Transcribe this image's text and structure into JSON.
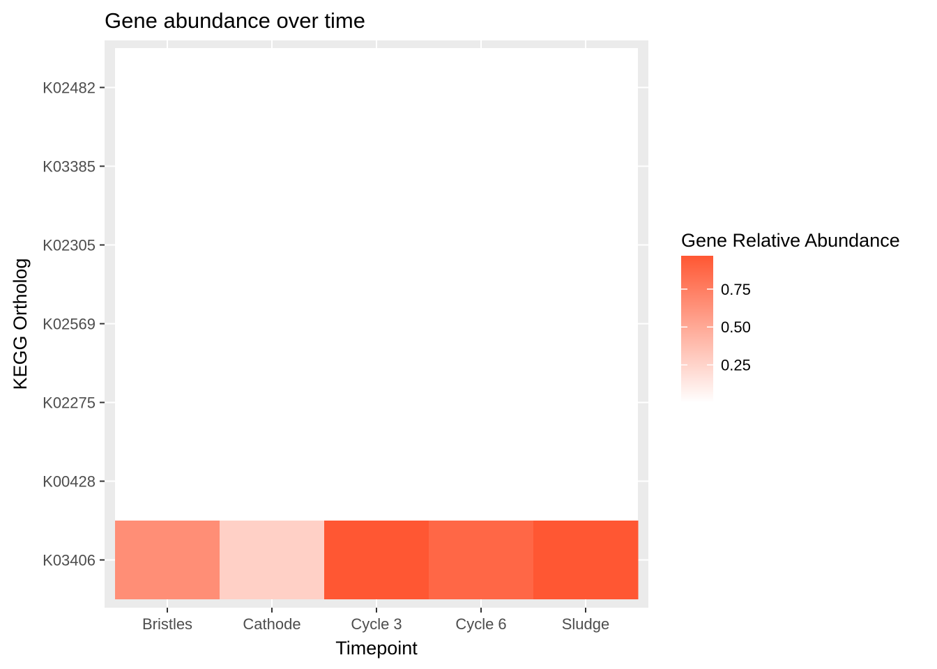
{
  "chart_data": {
    "type": "heatmap",
    "title": "Gene abundance over time",
    "xlabel": "Timepoint",
    "ylabel": "KEGG Ortholog",
    "x_categories": [
      "Bristles",
      "Cathode",
      "Cycle 3",
      "Cycle 6",
      "Sludge"
    ],
    "y_categories": [
      "K02482",
      "K03385",
      "K02305",
      "K02569",
      "K02275",
      "K00428",
      "K03406"
    ],
    "cells": [
      {
        "x": "Bristles",
        "y": "K03406",
        "value": 0.65
      },
      {
        "x": "Cathode",
        "y": "K03406",
        "value": 0.27
      },
      {
        "x": "Cycle 3",
        "y": "K03406",
        "value": 0.97
      },
      {
        "x": "Cycle 6",
        "y": "K03406",
        "value": 0.88
      },
      {
        "x": "Sludge",
        "y": "K03406",
        "value": 0.97
      }
    ],
    "legend": {
      "title": "Gene Relative Abundance",
      "breaks": [
        0.25,
        0.5,
        0.75
      ],
      "break_labels": [
        "0.25",
        "0.50",
        "0.75"
      ],
      "range": [
        0.0,
        0.97
      ],
      "low_color": "#ffffff",
      "high_color": "#ff5733",
      "position": "right"
    },
    "grid": true,
    "panel_background": "#ebebeb"
  }
}
